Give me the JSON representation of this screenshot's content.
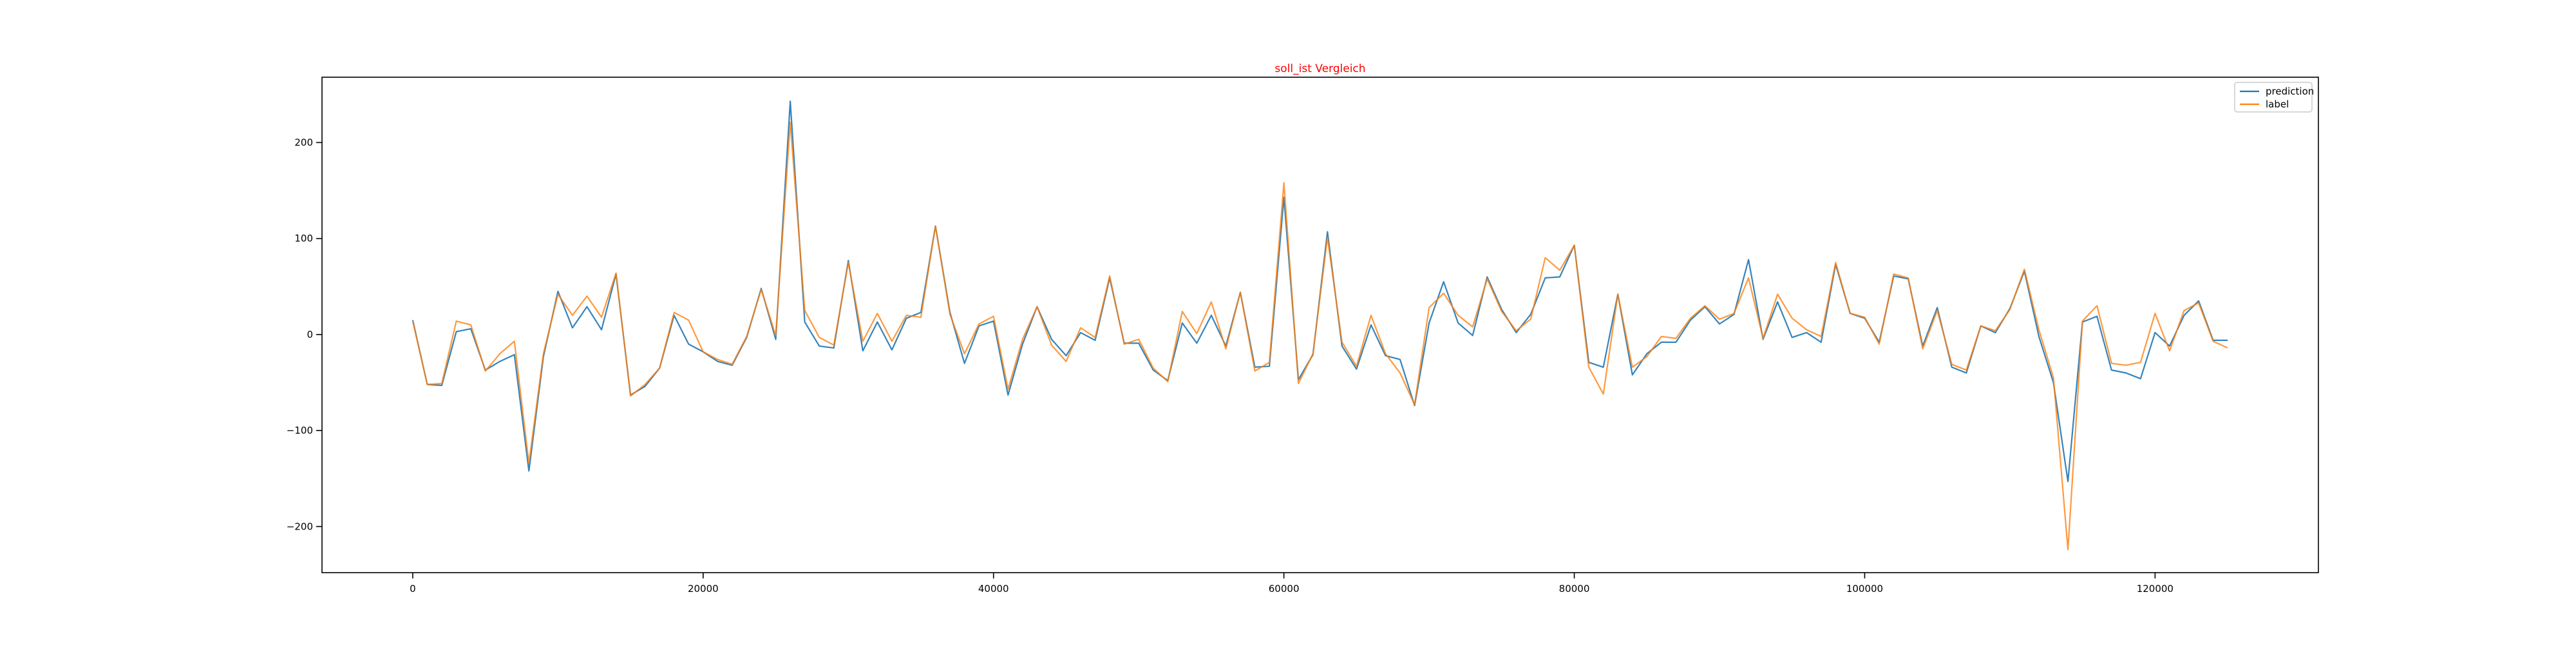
{
  "chart_data": {
    "type": "line",
    "title": "soll_ist Vergleich",
    "title_color": "#ff0000",
    "xlabel": "",
    "ylabel": "",
    "xlim": [
      -6250,
      131250
    ],
    "ylim": [
      -248,
      268
    ],
    "x_ticks": [
      0,
      20000,
      40000,
      60000,
      80000,
      100000,
      120000
    ],
    "y_ticks": [
      -200,
      -100,
      0,
      100,
      200
    ],
    "x_tick_labels": [
      "0",
      "20000",
      "40000",
      "60000",
      "80000",
      "100000",
      "120000"
    ],
    "y_tick_labels": [
      "−200",
      "−100",
      "0",
      "100",
      "200"
    ],
    "grid": false,
    "legend_position": "top-right",
    "x_step": 1000,
    "series": [
      {
        "name": "prediction",
        "color": "#1f77b4",
        "values": [
          15,
          -52,
          -53,
          3,
          6,
          -37,
          -28,
          -21,
          -142,
          -23,
          45,
          7,
          29,
          5,
          63,
          -63,
          -54,
          -35,
          20,
          -10,
          -18,
          -28,
          -32,
          -3,
          48,
          -5,
          243,
          13,
          -12,
          -14,
          77,
          -17,
          13,
          -16,
          17,
          23,
          113,
          23,
          -30,
          9,
          14,
          -63,
          -10,
          29,
          -5,
          -22,
          2,
          -6,
          59,
          -9,
          -9,
          -37,
          -48,
          12,
          -9,
          20,
          -12,
          44,
          -34,
          -33,
          143,
          -47,
          -21,
          107,
          -12,
          -36,
          10,
          -22,
          -26,
          -74,
          12,
          55,
          12,
          -1,
          60,
          26,
          2,
          21,
          59,
          60,
          93,
          -29,
          -34,
          42,
          -42,
          -20,
          -8,
          -8,
          15,
          29,
          11,
          21,
          78,
          -5,
          34,
          -3,
          2,
          -8,
          73,
          22,
          17,
          -8,
          61,
          58,
          -12,
          28,
          -34,
          -40,
          9,
          2,
          27,
          66,
          -2,
          -50,
          -153,
          13,
          19,
          -37,
          -40,
          -46,
          2,
          -12,
          20,
          35,
          -6,
          -6
        ]
      },
      {
        "name": "label",
        "color": "#ff7f0e",
        "values": [
          14,
          -52,
          -51,
          14,
          10,
          -38,
          -20,
          -7,
          -134,
          -20,
          42,
          20,
          40,
          18,
          64,
          -64,
          -52,
          -35,
          23,
          15,
          -18,
          -26,
          -31,
          -2,
          47,
          -1,
          221,
          25,
          -3,
          -11,
          75,
          -7,
          22,
          -7,
          20,
          18,
          113,
          21,
          -20,
          11,
          19,
          -57,
          -5,
          29,
          -11,
          -28,
          7,
          -3,
          61,
          -10,
          -5,
          -35,
          -49,
          24,
          1,
          34,
          -15,
          44,
          -38,
          -29,
          158,
          -51,
          -20,
          101,
          -8,
          -33,
          20,
          -20,
          -40,
          -73,
          28,
          43,
          20,
          8,
          58,
          24,
          4,
          16,
          80,
          67,
          93,
          -34,
          -62,
          42,
          -34,
          -23,
          -2,
          -4,
          17,
          30,
          16,
          22,
          59,
          -4,
          42,
          17,
          5,
          -2,
          75,
          22,
          18,
          -10,
          63,
          59,
          -15,
          25,
          -31,
          -37,
          9,
          4,
          26,
          68,
          5,
          -45,
          -224,
          14,
          30,
          -30,
          -32,
          -29,
          22,
          -17,
          25,
          33,
          -7,
          -14
        ]
      }
    ]
  }
}
